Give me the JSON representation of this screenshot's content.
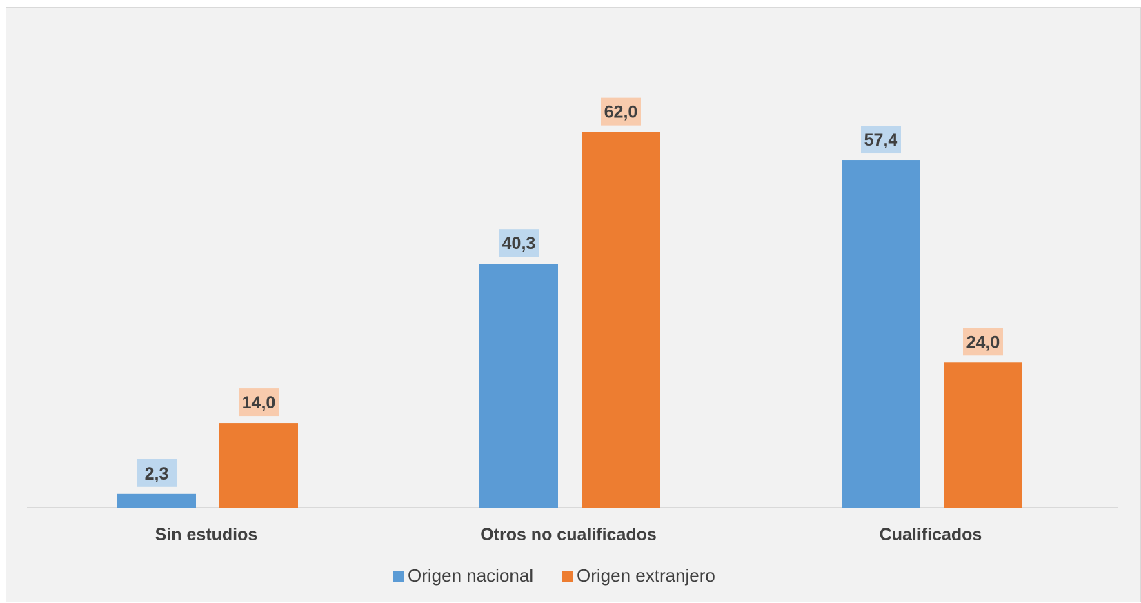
{
  "chart_data": {
    "type": "bar",
    "categories": [
      "Sin estudios",
      "Otros no cualificados",
      "Cualificados"
    ],
    "series": [
      {
        "name": "Origen nacional",
        "values": [
          2.3,
          40.3,
          57.4
        ],
        "labels": [
          "2,3",
          "40,3",
          "57,4"
        ],
        "color": "#5b9bd5",
        "label_bg": "#bdd7ee"
      },
      {
        "name": "Origen extranjero",
        "values": [
          14.0,
          62.0,
          24.0
        ],
        "labels": [
          "14,0",
          "62,0",
          "24,0"
        ],
        "color": "#ed7d31",
        "label_bg": "#f8cbad"
      }
    ],
    "ylim": [
      0,
      70
    ],
    "grid": false,
    "legend": "bottom"
  }
}
